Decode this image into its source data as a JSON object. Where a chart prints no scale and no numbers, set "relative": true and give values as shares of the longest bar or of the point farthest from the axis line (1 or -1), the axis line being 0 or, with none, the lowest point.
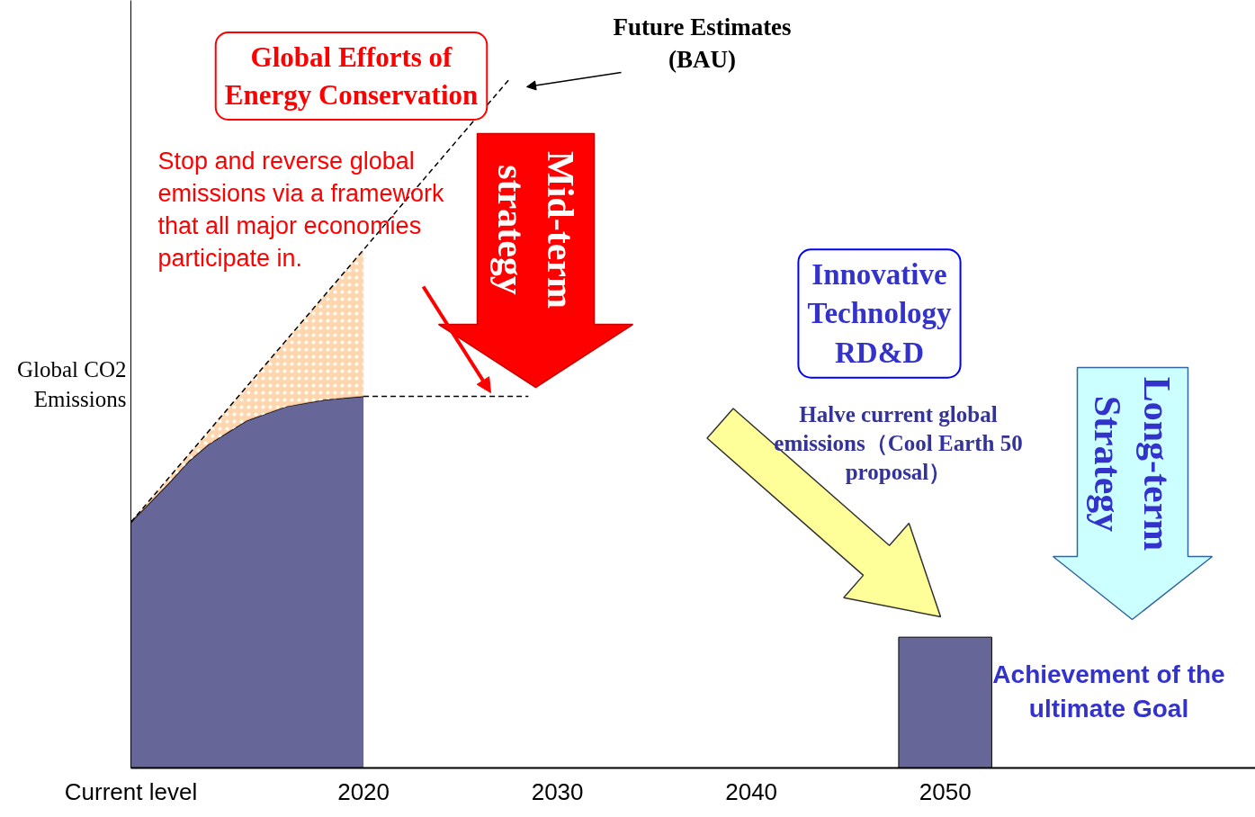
{
  "chart_data": {
    "type": "area",
    "relative": true,
    "ylabel": "Global CO2 Emissions",
    "x": [
      2008,
      2010,
      2011,
      2012,
      2014,
      2016,
      2018,
      2020
    ],
    "series": [
      {
        "color": "#666699",
        "values": [
          0.357,
          0.415,
          0.446,
          0.47,
          0.505,
          0.525,
          0.535,
          0.54
        ]
      },
      {
        "type": "line",
        "color": "#000000",
        "line_style": "dashed",
        "x": [
          2008,
          2010,
          2011,
          2012,
          2014,
          2016,
          2018,
          2020,
          2027.5
        ],
        "values": [
          0.357,
          0.423,
          0.456,
          0.489,
          0.555,
          0.621,
          0.687,
          0.753,
          1.0
        ],
        "lower": [
          0.357,
          0.415,
          0.446,
          0.47,
          0.505,
          0.525,
          0.535,
          0.54,
          null
        ],
        "upper": [
          0.357,
          0.423,
          0.456,
          0.489,
          0.555,
          0.621,
          0.687,
          0.753,
          null
        ]
      },
      {
        "type": "line",
        "color": "#000000",
        "line_style": "dashed",
        "x": [
          2020,
          2028.5
        ],
        "values": [
          0.54,
          0.54
        ]
      },
      {
        "type": "bar",
        "color": "#666699",
        "x": [
          2050
        ],
        "values": [
          0.19
        ]
      }
    ],
    "xlim": [
      2008,
      2066
    ],
    "xticks": [
      {
        "value": 2008,
        "label": "Current level"
      },
      2020,
      2030,
      2040,
      2050
    ],
    "annotations": [
      "Global Efforts of Energy Conservation",
      "Future Estimates (BAU)",
      "Stop and reverse global emissions via a framework that all major economies participate in.",
      "Mid-term strategy",
      "Innovative Technology RD&D",
      "Halve current global emissions（Cool Earth 50 proposal）",
      "Long-term Strategy",
      "Achievement of the ultimate Goal"
    ]
  }
}
